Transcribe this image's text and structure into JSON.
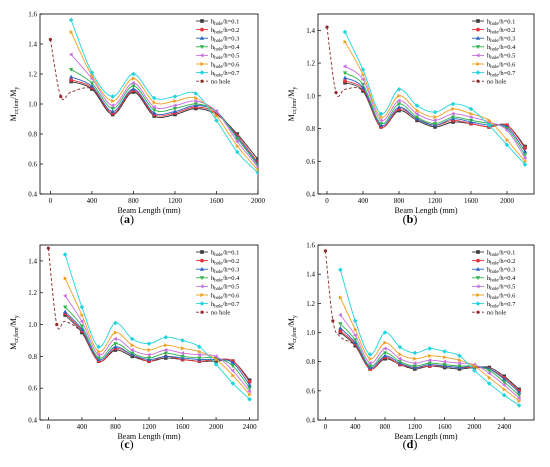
{
  "colors": [
    "#3a3a3a",
    "#e8323c",
    "#2a63c4",
    "#2bb24a",
    "#c86ee0",
    "#f0a020",
    "#22d4dc"
  ],
  "nohole_color": "#8c2a2a",
  "chart_data": [
    {
      "type": "line",
      "panel_label": "a",
      "xlabel": "Beam Length (mm)",
      "ylabel": "M_cr,fem/M_y",
      "xlim": [
        -100,
        2000
      ],
      "ylim": [
        0.4,
        1.6
      ],
      "xticks": [
        0,
        400,
        800,
        1200,
        1600,
        2000
      ],
      "yticks": [
        0.4,
        0.6,
        0.8,
        1.0,
        1.2,
        1.4,
        1.6
      ],
      "x": [
        200,
        400,
        600,
        800,
        1000,
        1200,
        1400,
        1600,
        1800,
        2000
      ],
      "series": [
        {
          "name": "h_hole/h=0.1",
          "values": [
            1.15,
            1.1,
            0.93,
            1.08,
            0.92,
            0.93,
            0.97,
            0.93,
            0.8,
            0.63
          ]
        },
        {
          "name": "h_hole/h=0.2",
          "values": [
            1.16,
            1.11,
            0.94,
            1.09,
            0.93,
            0.94,
            0.98,
            0.94,
            0.79,
            0.61
          ]
        },
        {
          "name": "h_hole/h=0.3",
          "values": [
            1.18,
            1.12,
            0.95,
            1.1,
            0.94,
            0.95,
            0.99,
            0.95,
            0.78,
            0.6
          ]
        },
        {
          "name": "h_hole/h=0.4",
          "values": [
            1.23,
            1.14,
            0.97,
            1.12,
            0.96,
            0.97,
            1.0,
            0.95,
            0.77,
            0.59
          ]
        },
        {
          "name": "h_hole/h=0.5",
          "values": [
            1.33,
            1.17,
            0.99,
            1.14,
            0.98,
            0.99,
            1.02,
            0.95,
            0.75,
            0.58
          ]
        },
        {
          "name": "h_hole/h=0.6",
          "values": [
            1.48,
            1.19,
            1.02,
            1.17,
            1.01,
            1.02,
            1.04,
            0.92,
            0.72,
            0.56
          ]
        },
        {
          "name": "h_hole/h=0.7",
          "values": [
            1.56,
            1.21,
            1.05,
            1.2,
            1.04,
            1.05,
            1.07,
            0.89,
            0.68,
            0.54
          ]
        }
      ],
      "nohole": {
        "name": "no hole",
        "x": [
          0,
          100,
          200,
          400,
          600,
          800,
          1000,
          1200,
          1400,
          1600,
          1800,
          2000
        ],
        "values": [
          1.43,
          1.05,
          1.08,
          1.1,
          0.93,
          1.08,
          0.92,
          0.93,
          0.97,
          0.93,
          0.8,
          0.63
        ]
      }
    },
    {
      "type": "line",
      "panel_label": "b",
      "xlabel": "Beam Length (mm)",
      "ylabel": "M_cr,fem/M_y",
      "xlim": [
        -100,
        2300
      ],
      "ylim": [
        0.4,
        1.5
      ],
      "xticks": [
        0,
        400,
        800,
        1200,
        1600,
        2000
      ],
      "yticks": [
        0.4,
        0.6,
        0.8,
        1.0,
        1.2,
        1.4
      ],
      "x": [
        200,
        400,
        600,
        800,
        1000,
        1200,
        1400,
        1600,
        1800,
        2000,
        2200
      ],
      "series": [
        {
          "name": "h_hole/h=0.1",
          "values": [
            1.08,
            1.03,
            0.81,
            0.91,
            0.85,
            0.81,
            0.84,
            0.83,
            0.81,
            0.82,
            0.69
          ]
        },
        {
          "name": "h_hole/h=0.2",
          "values": [
            1.09,
            1.04,
            0.81,
            0.92,
            0.86,
            0.82,
            0.85,
            0.83,
            0.81,
            0.82,
            0.68
          ]
        },
        {
          "name": "h_hole/h=0.3",
          "values": [
            1.11,
            1.05,
            0.82,
            0.93,
            0.86,
            0.82,
            0.86,
            0.84,
            0.82,
            0.81,
            0.66
          ]
        },
        {
          "name": "h_hole/h=0.4",
          "values": [
            1.14,
            1.07,
            0.83,
            0.95,
            0.87,
            0.83,
            0.87,
            0.85,
            0.83,
            0.8,
            0.64
          ]
        },
        {
          "name": "h_hole/h=0.5",
          "values": [
            1.18,
            1.1,
            0.85,
            0.97,
            0.89,
            0.85,
            0.89,
            0.87,
            0.84,
            0.79,
            0.62
          ]
        },
        {
          "name": "h_hole/h=0.6",
          "values": [
            1.33,
            1.13,
            0.87,
            1.0,
            0.91,
            0.87,
            0.92,
            0.89,
            0.85,
            0.73,
            0.6
          ]
        },
        {
          "name": "h_hole/h=0.7",
          "values": [
            1.39,
            1.16,
            0.89,
            1.04,
            0.94,
            0.9,
            0.95,
            0.92,
            0.82,
            0.7,
            0.58
          ]
        }
      ],
      "nohole": {
        "name": "no hole",
        "x": [
          0,
          100,
          200,
          400,
          600,
          800,
          1000,
          1200,
          1400,
          1600,
          1800,
          2000,
          2200
        ],
        "values": [
          1.42,
          1.02,
          1.04,
          1.03,
          0.81,
          0.91,
          0.85,
          0.81,
          0.84,
          0.83,
          0.81,
          0.82,
          0.69
        ]
      }
    },
    {
      "type": "line",
      "panel_label": "c",
      "xlabel": "Beam Length (mm)",
      "ylabel": "M_cr,fem/M_y",
      "xlim": [
        -100,
        2500
      ],
      "ylim": [
        0.4,
        1.5
      ],
      "xticks": [
        0,
        400,
        800,
        1200,
        1600,
        2000,
        2400
      ],
      "yticks": [
        0.4,
        0.6,
        0.8,
        1.0,
        1.2,
        1.4
      ],
      "x": [
        200,
        400,
        600,
        800,
        1000,
        1200,
        1400,
        1600,
        1800,
        2000,
        2200,
        2400
      ],
      "series": [
        {
          "name": "h_hole/h=0.1",
          "values": [
            1.06,
            0.95,
            0.77,
            0.84,
            0.8,
            0.77,
            0.79,
            0.78,
            0.77,
            0.77,
            0.77,
            0.65
          ]
        },
        {
          "name": "h_hole/h=0.2",
          "values": [
            1.07,
            0.96,
            0.77,
            0.85,
            0.81,
            0.77,
            0.8,
            0.78,
            0.77,
            0.78,
            0.77,
            0.64
          ]
        },
        {
          "name": "h_hole/h=0.3",
          "values": [
            1.08,
            0.97,
            0.78,
            0.86,
            0.81,
            0.78,
            0.8,
            0.79,
            0.78,
            0.78,
            0.76,
            0.62
          ]
        },
        {
          "name": "h_hole/h=0.4",
          "values": [
            1.11,
            0.99,
            0.79,
            0.88,
            0.82,
            0.79,
            0.82,
            0.8,
            0.79,
            0.79,
            0.74,
            0.6
          ]
        },
        {
          "name": "h_hole/h=0.5",
          "values": [
            1.18,
            1.02,
            0.81,
            0.91,
            0.84,
            0.81,
            0.84,
            0.82,
            0.81,
            0.8,
            0.71,
            0.58
          ]
        },
        {
          "name": "h_hole/h=0.6",
          "values": [
            1.29,
            1.06,
            0.83,
            0.95,
            0.87,
            0.84,
            0.87,
            0.85,
            0.83,
            0.78,
            0.68,
            0.56
          ]
        },
        {
          "name": "h_hole/h=0.7",
          "values": [
            1.44,
            1.11,
            0.86,
            1.01,
            0.91,
            0.88,
            0.92,
            0.9,
            0.86,
            0.75,
            0.63,
            0.53
          ]
        }
      ],
      "nohole": {
        "name": "no hole",
        "x": [
          0,
          100,
          200,
          400,
          600,
          800,
          1000,
          1200,
          1400,
          1600,
          1800,
          2000,
          2200,
          2400
        ],
        "values": [
          1.48,
          1.0,
          1.02,
          0.95,
          0.77,
          0.84,
          0.8,
          0.77,
          0.79,
          0.78,
          0.77,
          0.77,
          0.77,
          0.65
        ]
      }
    },
    {
      "type": "line",
      "panel_label": "d",
      "xlabel": "Beam Length (mm)",
      "ylabel": "M_cr,fem/M_y",
      "xlim": [
        -100,
        2800
      ],
      "ylim": [
        0.4,
        1.6
      ],
      "xticks": [
        0,
        400,
        800,
        1200,
        1600,
        2000,
        2400
      ],
      "yticks": [
        0.4,
        0.6,
        0.8,
        1.0,
        1.2,
        1.4,
        1.6
      ],
      "x": [
        200,
        400,
        600,
        800,
        1000,
        1200,
        1400,
        1600,
        1800,
        2000,
        2200,
        2400,
        2600
      ],
      "series": [
        {
          "name": "h_hole/h=0.1",
          "values": [
            1.0,
            0.91,
            0.75,
            0.82,
            0.78,
            0.75,
            0.77,
            0.76,
            0.75,
            0.76,
            0.76,
            0.7,
            0.61
          ]
        },
        {
          "name": "h_hole/h=0.2",
          "values": [
            1.01,
            0.92,
            0.75,
            0.83,
            0.78,
            0.76,
            0.77,
            0.77,
            0.76,
            0.76,
            0.75,
            0.69,
            0.6
          ]
        },
        {
          "name": "h_hole/h=0.3",
          "values": [
            1.03,
            0.93,
            0.76,
            0.84,
            0.79,
            0.76,
            0.78,
            0.77,
            0.76,
            0.77,
            0.75,
            0.68,
            0.59
          ]
        },
        {
          "name": "h_hole/h=0.4",
          "values": [
            1.06,
            0.95,
            0.77,
            0.86,
            0.8,
            0.77,
            0.79,
            0.78,
            0.77,
            0.77,
            0.74,
            0.66,
            0.57
          ]
        },
        {
          "name": "h_hole/h=0.5",
          "values": [
            1.12,
            0.98,
            0.79,
            0.89,
            0.82,
            0.79,
            0.81,
            0.8,
            0.79,
            0.78,
            0.72,
            0.64,
            0.55
          ]
        },
        {
          "name": "h_hole/h=0.6",
          "values": [
            1.24,
            1.02,
            0.82,
            0.93,
            0.85,
            0.82,
            0.84,
            0.83,
            0.81,
            0.77,
            0.69,
            0.61,
            0.53
          ]
        },
        {
          "name": "h_hole/h=0.7",
          "values": [
            1.43,
            1.08,
            0.85,
            1.0,
            0.9,
            0.86,
            0.89,
            0.87,
            0.84,
            0.74,
            0.65,
            0.57,
            0.5
          ]
        }
      ],
      "nohole": {
        "name": "no hole",
        "x": [
          0,
          100,
          200,
          400,
          600,
          800,
          1000,
          1200,
          1400,
          1600,
          1800,
          2000,
          2200,
          2400,
          2600
        ],
        "values": [
          1.56,
          1.08,
          0.97,
          0.91,
          0.75,
          0.82,
          0.78,
          0.75,
          0.77,
          0.76,
          0.75,
          0.76,
          0.76,
          0.7,
          0.61
        ]
      }
    }
  ]
}
